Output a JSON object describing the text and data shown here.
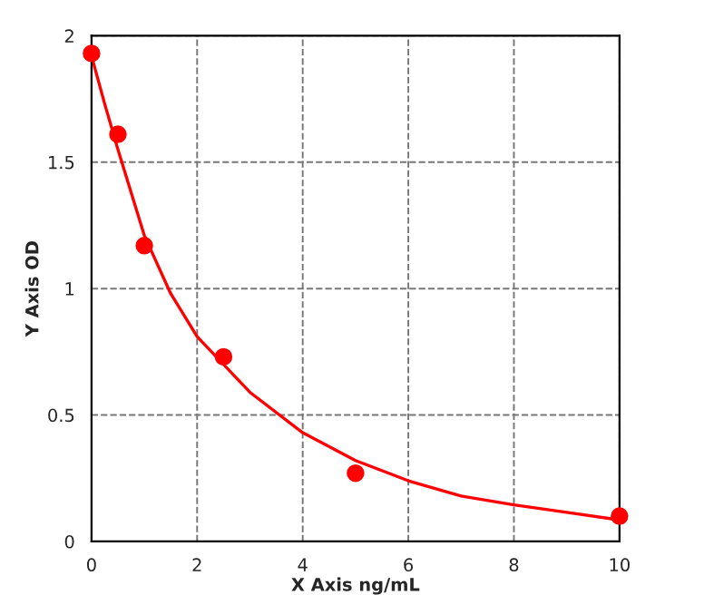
{
  "chart_data": {
    "type": "scatter",
    "xlabel": "X Axis ng/mL",
    "ylabel": "Y Axis OD",
    "series": [
      {
        "color": "#ff0000",
        "x": [
          0,
          0.5,
          1,
          2.5,
          5,
          10
        ],
        "values": [
          1.93,
          1.61,
          1.17,
          0.73,
          0.27,
          0.1
        ],
        "marker": "circle"
      },
      {
        "type": "line",
        "color": "#ff0000",
        "x": [
          0,
          0.25,
          0.5,
          1,
          1.5,
          2,
          3,
          4,
          5,
          6,
          7,
          8,
          9,
          10
        ],
        "values": [
          1.92,
          1.73,
          1.55,
          1.21,
          0.98,
          0.81,
          0.59,
          0.43,
          0.32,
          0.24,
          0.18,
          0.145,
          0.115,
          0.085
        ],
        "line_style": "solid"
      }
    ],
    "xlim": [
      0,
      10
    ],
    "xticks": [
      0,
      2,
      4,
      6,
      8,
      10
    ],
    "ylim": [
      0,
      2
    ],
    "yticks": [
      0,
      0.5,
      1,
      1.5,
      2
    ],
    "grid": true
  }
}
